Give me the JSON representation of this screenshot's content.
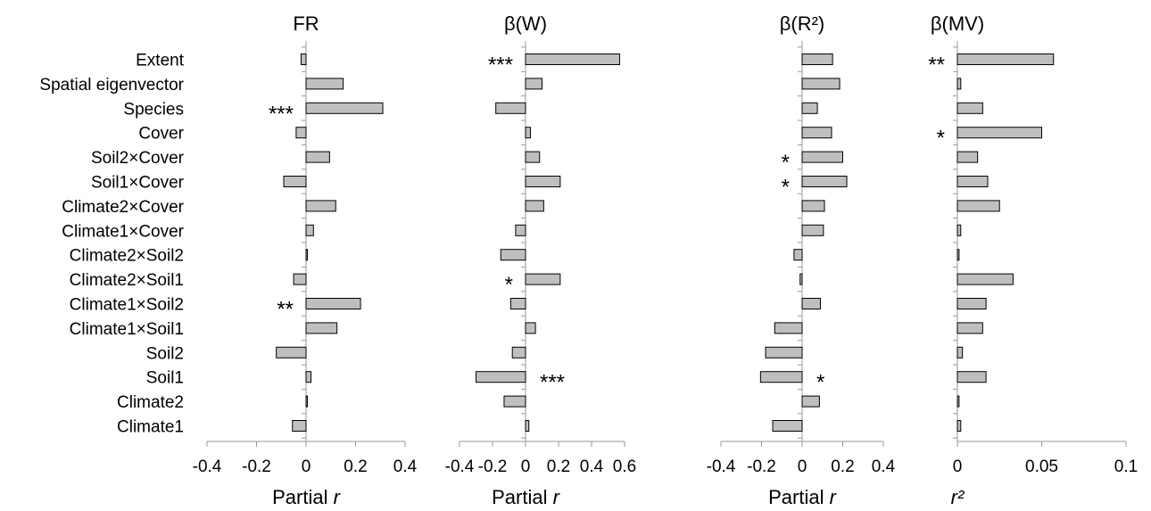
{
  "chart_data": {
    "type": "bar",
    "orientation": "horizontal",
    "categories": [
      "Extent",
      "Spatial eigenvector",
      "Species",
      "Cover",
      "Soil2×Cover",
      "Soil1×Cover",
      "Climate2×Cover",
      "Climate1×Cover",
      "Climate2×Soil2",
      "Climate2×Soil1",
      "Climate1×Soil2",
      "Climate1×Soil1",
      "Soil2",
      "Soil1",
      "Climate2",
      "Climate1"
    ],
    "panels": [
      {
        "title": "FR",
        "xlabel": "Partial",
        "xlabel_italic": "r",
        "xlim": [
          -0.4,
          0.4
        ],
        "ticks": [
          -0.4,
          -0.2,
          0,
          0.2,
          0.4
        ],
        "tick_labels": [
          "-0.4",
          "-0.2",
          "0",
          "0.2",
          "0.4"
        ],
        "values": [
          -0.02,
          0.15,
          0.31,
          -0.04,
          0.095,
          -0.09,
          0.12,
          0.03,
          0.005,
          -0.05,
          0.22,
          0.125,
          -0.12,
          0.02,
          0.005,
          -0.055
        ],
        "sig": [
          "",
          "",
          "***",
          "",
          "",
          "",
          "",
          "",
          "",
          "",
          "**",
          "",
          "",
          "",
          "",
          ""
        ]
      },
      {
        "title": "β(W)",
        "xlabel": "Partial",
        "xlabel_italic": "r",
        "xlim": [
          -0.4,
          0.6
        ],
        "ticks": [
          -0.4,
          -0.2,
          0,
          0.2,
          0.4,
          0.6
        ],
        "tick_labels": [
          "-0.4",
          "-0.2",
          "0",
          "0.2",
          "0.4",
          "0.6"
        ],
        "values": [
          0.57,
          0.1,
          -0.18,
          0.03,
          0.085,
          0.21,
          0.11,
          -0.06,
          -0.15,
          0.21,
          -0.09,
          0.06,
          -0.08,
          -0.3,
          -0.13,
          0.02
        ],
        "sig": [
          "***",
          "",
          "",
          "",
          "",
          "",
          "",
          "",
          "",
          "*",
          "",
          "",
          "",
          "***",
          "",
          ""
        ]
      },
      {
        "title": "β(R²)",
        "xlabel": "Partial",
        "xlabel_italic": "r",
        "xlim": [
          -0.4,
          0.4
        ],
        "ticks": [
          -0.4,
          -0.2,
          0,
          0.2,
          0.4
        ],
        "tick_labels": [
          "-0.4",
          "-0.2",
          "0",
          "0.2",
          "0.4"
        ],
        "values": [
          0.15,
          0.185,
          0.075,
          0.145,
          0.2,
          0.22,
          0.11,
          0.105,
          -0.04,
          -0.01,
          0.09,
          -0.135,
          -0.18,
          -0.205,
          0.085,
          -0.145
        ],
        "sig": [
          "",
          "",
          "",
          "",
          "*",
          "*",
          "",
          "",
          "",
          "",
          "",
          "",
          "",
          "*",
          "",
          ""
        ]
      },
      {
        "title": "β(MV)",
        "xlabel": "",
        "xlabel_italic": "r²",
        "xlim": [
          0,
          0.1
        ],
        "ticks": [
          0,
          0.05,
          0.1
        ],
        "tick_labels": [
          "0",
          "0.05",
          "0.1"
        ],
        "values": [
          0.057,
          0.002,
          0.015,
          0.05,
          0.012,
          0.018,
          0.025,
          0.002,
          0.001,
          0.033,
          0.017,
          0.015,
          0.003,
          0.017,
          0.001,
          0.002
        ],
        "sig": [
          "**",
          "",
          "",
          "*",
          "",
          "",
          "",
          "",
          "",
          "",
          "",
          "",
          "",
          "",
          "",
          ""
        ]
      }
    ]
  }
}
